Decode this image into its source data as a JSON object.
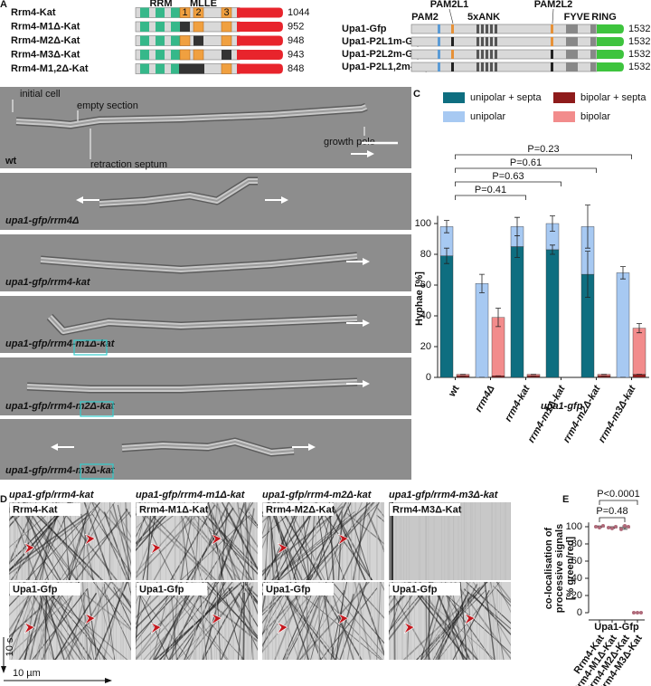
{
  "panel_labels": [
    "A",
    "B",
    "C",
    "D",
    "E"
  ],
  "panel_a": {
    "rrm4_domains": [
      "RRM",
      "MLLE",
      "1",
      "2",
      "3"
    ],
    "rrm4_constructs": [
      {
        "name": "Rrm4-Kat",
        "length": 1044
      },
      {
        "name": "Rrm4-M1Δ-Kat",
        "length": 952
      },
      {
        "name": "Rrm4-M2Δ-Kat",
        "length": 948
      },
      {
        "name": "Rrm4-M3Δ-Kat",
        "length": 943
      },
      {
        "name": "Rrm4-M1,2Δ-Kat",
        "length": 848
      }
    ],
    "upa1_domains": [
      "PAM2",
      "PAM2L1",
      "5xANK",
      "PAM2L2",
      "FYVE",
      "RING"
    ],
    "upa1_constructs": [
      {
        "name": "Upa1-Gfp",
        "length": 1532
      },
      {
        "name": "Upa1-P2L1m-Gfp",
        "length": 1532
      },
      {
        "name": "Upa1-P2L2m-Gfp",
        "length": 1532
      },
      {
        "name": "Upa1-P2L1,2m-Gfp",
        "length": 1532
      }
    ]
  },
  "panel_b": {
    "annotations": [
      "initial cell",
      "empty section",
      "retraction septum",
      "growth pole"
    ],
    "strains": [
      "wt",
      "upa1-gfp/rrm4Δ",
      "upa1-gfp/rrm4-kat",
      "upa1-gfp/rrm4-m1Δ-kat",
      "upa1-gfp/rrm4-m2Δ-kat",
      "upa1-gfp/rrm4-m3Δ-kat"
    ]
  },
  "chart_data": [
    {
      "type": "stacked_bar",
      "ylabel": "Hyphae [%]",
      "xlabel": "upa1-gfp",
      "categories": [
        "wt",
        "rrm4Δ",
        "rrm4-kat",
        "rrm4-m1Δ-kat",
        "rrm4-m2Δ-kat",
        "rrm4-m3Δ-kat"
      ],
      "ylim": [
        0,
        105
      ],
      "yticks": [
        0,
        20,
        40,
        60,
        80,
        100
      ],
      "stacks": [
        {
          "series": [
            {
              "name": "unipolar + septa",
              "color": "#0e6e80",
              "values": [
                79,
                0,
                85,
                83,
                67,
                0
              ],
              "errors": [
                5,
                0,
                7,
                3,
                15,
                0
              ]
            },
            {
              "name": "unipolar",
              "color": "#a7c9f2",
              "values": [
                19,
                61,
                13,
                17,
                31,
                68
              ],
              "errors": [
                4,
                6,
                6,
                5,
                14,
                4
              ]
            }
          ]
        },
        {
          "series": [
            {
              "name": "bipolar + septa",
              "color": "#8e1b1b",
              "values": [
                1,
                1,
                1,
                0,
                1,
                2
              ],
              "errors": [
                0,
                0,
                0,
                0,
                0,
                0
              ]
            },
            {
              "name": "bipolar",
              "color": "#f28c8c",
              "values": [
                1,
                38,
                1,
                0,
                1,
                30
              ],
              "errors": [
                0,
                6,
                0,
                0,
                0,
                3
              ]
            }
          ]
        }
      ],
      "comparisons": [
        {
          "pair": [
            0,
            2
          ],
          "label": "P=0.41"
        },
        {
          "pair": [
            0,
            3
          ],
          "label": "P=0.63"
        },
        {
          "pair": [
            0,
            4
          ],
          "label": "P=0.61"
        },
        {
          "pair": [
            0,
            5
          ],
          "label": "P=0.23"
        }
      ]
    },
    {
      "type": "dot",
      "ylabel_lines": [
        "co-localisation of",
        "processive signals",
        "[% green/red]"
      ],
      "xlabel": "Upa1-Gfp",
      "categories": [
        "Rrm4-Kat",
        "Rrm4-M1Δ-Kat",
        "Rrm4-M2Δ-Kat",
        "Rrm4-M3Δ-Kat"
      ],
      "points": [
        [
          100,
          99,
          101
        ],
        [
          99,
          98,
          100
        ],
        [
          97,
          101,
          100
        ],
        [
          0,
          0,
          0
        ]
      ],
      "means": [
        100,
        99,
        99,
        0
      ],
      "errors": [
        1,
        1,
        2,
        0
      ],
      "color": "#b06a7a",
      "ylim": [
        0,
        105
      ],
      "yticks": [
        0,
        20,
        40,
        60,
        80,
        100
      ],
      "comparisons": [
        {
          "pair": [
            0,
            2
          ],
          "label": "P=0.48"
        },
        {
          "pair": [
            0,
            3
          ],
          "label": "P<0.0001"
        }
      ]
    }
  ],
  "panel_d": {
    "columns": [
      {
        "title": "upa1-gfp/rrm4-kat",
        "top_label": "Rrm4-Kat",
        "bottom_label": "Upa1-Gfp"
      },
      {
        "title": "upa1-gfp/rrm4-m1Δ-kat",
        "top_label": "Rrm4-M1Δ-Kat",
        "bottom_label": "Upa1-Gfp"
      },
      {
        "title": "upa1-gfp/rrm4-m2Δ-kat",
        "top_label": "Rrm4-M2Δ-Kat",
        "bottom_label": "Upa1-Gfp"
      },
      {
        "title": "upa1-gfp/rrm4-m3Δ-kat",
        "top_label": "Rrm4-M3Δ-Kat",
        "bottom_label": "Upa1-Gfp"
      }
    ],
    "time_scale": "10 s",
    "distance_scale": "10 µm"
  }
}
